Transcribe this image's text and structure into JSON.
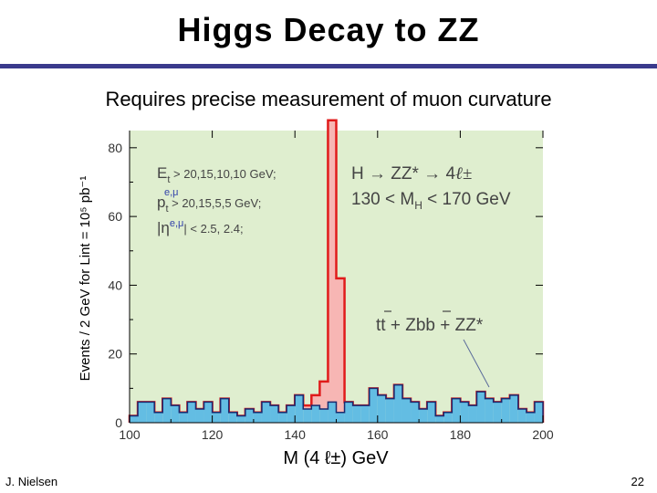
{
  "slide": {
    "title": "Higgs Decay to ZZ",
    "subtitle": "Requires precise measurement of muon curvature",
    "author": "J. Nielsen",
    "page_number": "22"
  },
  "colors": {
    "title_rule": "#3a3a8c",
    "plot_bg": "#dfeecf",
    "signal_fill": "#f7b6b4",
    "signal_line": "#e01b1b",
    "background_fill": "#63bde3",
    "background_line": "#1a2a6e"
  },
  "chart_data": {
    "type": "bar",
    "title": "",
    "xlabel": "M (4 ℓ±) GeV",
    "ylabel": "Events / 2 GeV for Lint = 10⁵ pb⁻¹",
    "xlim": [
      100,
      200
    ],
    "ylim": [
      0,
      85
    ],
    "bin_width": 2,
    "x_ticks": [
      "100",
      "120",
      "140",
      "160",
      "180",
      "200"
    ],
    "y_ticks": [
      "0",
      "20",
      "40",
      "60",
      "80"
    ],
    "bin_starts": [
      100,
      102,
      104,
      106,
      108,
      110,
      112,
      114,
      116,
      118,
      120,
      122,
      124,
      126,
      128,
      130,
      132,
      134,
      136,
      138,
      140,
      142,
      144,
      146,
      148,
      150,
      152,
      154,
      156,
      158,
      160,
      162,
      164,
      166,
      168,
      170,
      172,
      174,
      176,
      178,
      180,
      182,
      184,
      186,
      188,
      190,
      192,
      194,
      196,
      198
    ],
    "series": [
      {
        "name": "tt + Zbb + ZZ* (background)",
        "values": [
          2,
          6,
          6,
          3,
          7,
          5,
          3,
          6,
          4,
          6,
          3,
          7,
          3,
          2,
          4,
          3,
          6,
          5,
          3,
          5,
          8,
          4,
          5,
          4,
          6,
          3,
          6,
          5,
          5,
          10,
          8,
          7,
          11,
          7,
          6,
          4,
          6,
          2,
          3,
          7,
          6,
          5,
          9,
          7,
          6,
          7,
          8,
          4,
          3,
          6
        ]
      },
      {
        "name": "H → ZZ* → 4ℓ± (signal)",
        "values": [
          0,
          0,
          0,
          0,
          0,
          0,
          0,
          0,
          0,
          0,
          0,
          0,
          0,
          0,
          0,
          0,
          0,
          0,
          0,
          0,
          0,
          1,
          3,
          8,
          82,
          39,
          0,
          0,
          0,
          0,
          0,
          0,
          0,
          0,
          0,
          0,
          0,
          0,
          0,
          0,
          0,
          0,
          0,
          0,
          0,
          0,
          0,
          0,
          0,
          0
        ]
      }
    ],
    "annotations": {
      "cuts": [
        {
          "text": "E",
          "sub": "t",
          "rest": " > 20,15,10,10 GeV;"
        },
        {
          "text": "p",
          "sub": "t",
          "sup": "e,μ",
          "rest": " > 20,15,5,5 GeV;"
        },
        {
          "text": "|η",
          "sup": "e,μ",
          "rest": "| < 2.5, 2.4;"
        }
      ],
      "process": "H → ZZ* → 4",
      "process_lepton": "ℓ±",
      "mass_window": "130 < M",
      "mass_window_sub": "H",
      "mass_window_rest": " < 170 GeV",
      "background_label": "tt + Zbb + ZZ*"
    }
  }
}
